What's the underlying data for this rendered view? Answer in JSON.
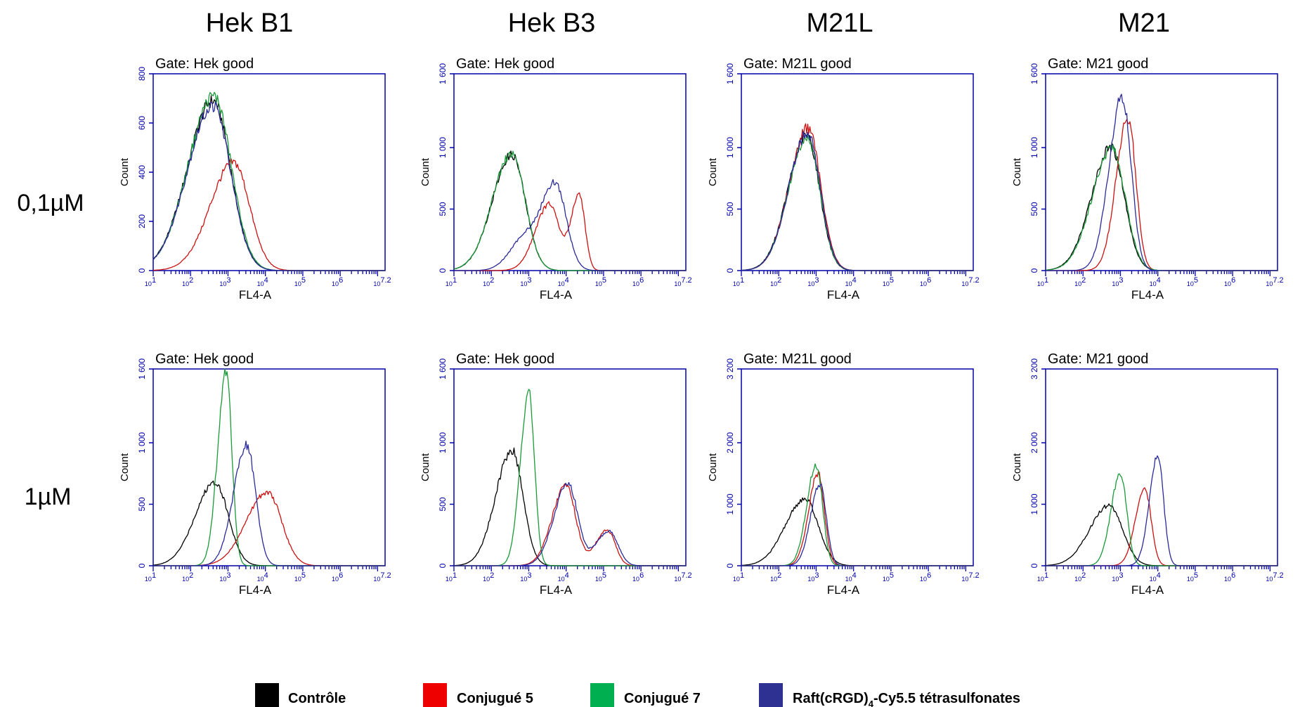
{
  "columns": [
    "Hek B1",
    "Hek B3",
    "M21L",
    "M21"
  ],
  "rows": [
    "0,1µM",
    "1µM"
  ],
  "legend": [
    {
      "label": "Contrôle",
      "color": "#000000"
    },
    {
      "label": "Conjugué 5",
      "color": "#ee0000"
    },
    {
      "label": "Conjugué 7",
      "color": "#00b050"
    },
    {
      "label": "Raft(cRGD)",
      "sub": "4",
      "tail": "-Cy5.5 tétrasulfonates",
      "color": "#2e3192"
    }
  ],
  "series_colors": {
    "controle": "#000000",
    "conj5": "#cc1111",
    "conj7": "#1a9a3a",
    "raft": "#2a2a9a"
  },
  "axis_color": "#0000aa",
  "chart_data": [
    {
      "type": "line",
      "title": "Gate: Hek good",
      "xlabel": "FL4-A",
      "ylabel": "Count",
      "xscale": "log",
      "xlim": [
        1,
        7.2
      ],
      "ylim": [
        0,
        800
      ],
      "yticks": [
        "0",
        "200",
        "400",
        "600",
        "800"
      ],
      "series": [
        {
          "key": "controle",
          "peaks": [
            [
              2.6,
              0.55,
              690
            ]
          ]
        },
        {
          "key": "conj5",
          "peaks": [
            [
              3.15,
              0.5,
              440
            ]
          ]
        },
        {
          "key": "conj7",
          "peaks": [
            [
              2.62,
              0.55,
              710
            ]
          ]
        },
        {
          "key": "raft",
          "peaks": [
            [
              2.6,
              0.55,
              670
            ]
          ]
        }
      ]
    },
    {
      "type": "line",
      "title": "Gate: Hek good",
      "xlabel": "FL4-A",
      "ylabel": "Count",
      "xscale": "log",
      "xlim": [
        1,
        7.2
      ],
      "ylim": [
        0,
        1600
      ],
      "yticks": [
        "0",
        "500",
        "1 000",
        "1 600"
      ],
      "series": [
        {
          "key": "controle",
          "peaks": [
            [
              2.55,
              0.42,
              940
            ]
          ]
        },
        {
          "key": "conj5",
          "peaks": [
            [
              3.55,
              0.3,
              540
            ],
            [
              4.35,
              0.18,
              620
            ]
          ]
        },
        {
          "key": "conj7",
          "peaks": [
            [
              2.55,
              0.42,
              950
            ]
          ]
        },
        {
          "key": "raft",
          "peaks": [
            [
              3.7,
              0.35,
              720
            ],
            [
              2.8,
              0.3,
              200
            ]
          ]
        }
      ]
    },
    {
      "type": "line",
      "title": "Gate: M21L good",
      "xlabel": "FL4-A",
      "ylabel": "Count",
      "xscale": "log",
      "xlim": [
        1,
        7.2
      ],
      "ylim": [
        0,
        1600
      ],
      "yticks": [
        "0",
        "500",
        "1 000",
        "1 600"
      ],
      "series": [
        {
          "key": "controle",
          "peaks": [
            [
              2.75,
              0.4,
              1100
            ]
          ]
        },
        {
          "key": "conj5",
          "peaks": [
            [
              2.78,
              0.4,
              1160
            ]
          ]
        },
        {
          "key": "conj7",
          "peaks": [
            [
              2.76,
              0.4,
              1080
            ]
          ]
        },
        {
          "key": "raft",
          "peaks": [
            [
              2.77,
              0.4,
              1120
            ]
          ]
        }
      ]
    },
    {
      "type": "line",
      "title": "Gate: M21 good",
      "xlabel": "FL4-A",
      "ylabel": "Count",
      "xscale": "log",
      "xlim": [
        1,
        7.2
      ],
      "ylim": [
        0,
        1600
      ],
      "yticks": [
        "0",
        "500",
        "1 000",
        "1 600"
      ],
      "series": [
        {
          "key": "controle",
          "peaks": [
            [
              2.75,
              0.42,
              1000
            ]
          ]
        },
        {
          "key": "conj5",
          "peaks": [
            [
              3.2,
              0.25,
              1250
            ]
          ]
        },
        {
          "key": "conj7",
          "peaks": [
            [
              2.77,
              0.42,
              990
            ]
          ]
        },
        {
          "key": "raft",
          "peaks": [
            [
              3.05,
              0.28,
              1420
            ]
          ]
        }
      ]
    },
    {
      "type": "line",
      "title": "Gate: Hek good",
      "xlabel": "FL4-A",
      "ylabel": "Count",
      "xscale": "log",
      "xlim": [
        1,
        7.2
      ],
      "ylim": [
        0,
        1600
      ],
      "yticks": [
        "0",
        "500",
        "1 000",
        "1 600"
      ],
      "series": [
        {
          "key": "controle",
          "peaks": [
            [
              2.65,
              0.42,
              680
            ]
          ]
        },
        {
          "key": "conj5",
          "peaks": [
            [
              4.05,
              0.45,
              600
            ]
          ]
        },
        {
          "key": "conj7",
          "peaks": [
            [
              2.95,
              0.18,
              1570
            ]
          ]
        },
        {
          "key": "raft",
          "peaks": [
            [
              3.5,
              0.28,
              980
            ]
          ]
        }
      ]
    },
    {
      "type": "line",
      "title": "Gate: Hek good",
      "xlabel": "FL4-A",
      "ylabel": "Count",
      "xscale": "log",
      "xlim": [
        1,
        7.2
      ],
      "ylim": [
        0,
        1600
      ],
      "yticks": [
        "0",
        "500",
        "1 000",
        "1 600"
      ],
      "series": [
        {
          "key": "controle",
          "peaks": [
            [
              2.55,
              0.35,
              940
            ]
          ]
        },
        {
          "key": "conj5",
          "peaks": [
            [
              4.0,
              0.3,
              650
            ],
            [
              5.1,
              0.25,
              290
            ]
          ]
        },
        {
          "key": "conj7",
          "peaks": [
            [
              3.0,
              0.18,
              1420
            ]
          ]
        },
        {
          "key": "raft",
          "peaks": [
            [
              4.05,
              0.3,
              670
            ],
            [
              5.15,
              0.28,
              280
            ]
          ]
        }
      ]
    },
    {
      "type": "line",
      "title": "Gate: M21L good",
      "xlabel": "FL4-A",
      "ylabel": "Count",
      "xscale": "log",
      "xlim": [
        1,
        7.2
      ],
      "ylim": [
        0,
        3200
      ],
      "yticks": [
        "0",
        "1 000",
        "2 000",
        "3 200"
      ],
      "series": [
        {
          "key": "controle",
          "peaks": [
            [
              2.7,
              0.42,
              1080
            ]
          ]
        },
        {
          "key": "conj5",
          "peaks": [
            [
              3.05,
              0.2,
              1500
            ]
          ]
        },
        {
          "key": "conj7",
          "peaks": [
            [
              3.0,
              0.2,
              1640
            ]
          ]
        },
        {
          "key": "raft",
          "peaks": [
            [
              3.1,
              0.2,
              1320
            ]
          ]
        }
      ]
    },
    {
      "type": "line",
      "title": "Gate: M21 good",
      "xlabel": "FL4-A",
      "ylabel": "Count",
      "xscale": "log",
      "xlim": [
        1,
        7.2
      ],
      "ylim": [
        0,
        3200
      ],
      "yticks": [
        "0",
        "1 000",
        "2 000",
        "3 200"
      ],
      "series": [
        {
          "key": "controle",
          "peaks": [
            [
              2.7,
              0.42,
              980
            ]
          ]
        },
        {
          "key": "conj5",
          "peaks": [
            [
              3.65,
              0.2,
              1250
            ]
          ]
        },
        {
          "key": "conj7",
          "peaks": [
            [
              3.0,
              0.2,
              1500
            ]
          ]
        },
        {
          "key": "raft",
          "peaks": [
            [
              4.0,
              0.18,
              1800
            ]
          ]
        }
      ]
    }
  ]
}
